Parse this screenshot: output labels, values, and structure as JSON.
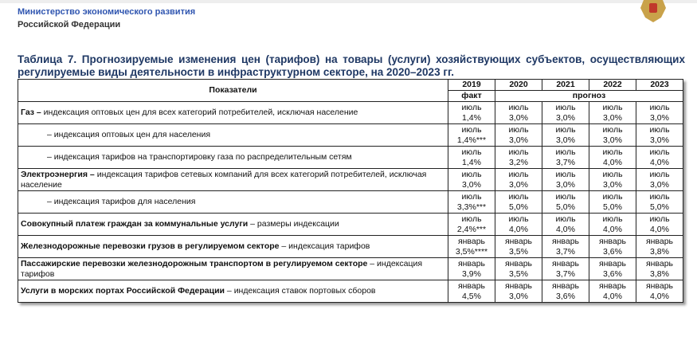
{
  "header": {
    "org_line1": "Министерство экономического развития",
    "org_line2": "Российской Федерации"
  },
  "title": "Таблица 7. Прогнозируемые изменения цен (тарифов) на товары (услуги) хозяйствующих субъектов, осуществляющих регулируемые виды деятельности в инфраструктурном секторе, на 2020–2023 гг.",
  "table": {
    "col_indicator": "Показатели",
    "years": [
      "2019",
      "2020",
      "2021",
      "2022",
      "2023"
    ],
    "fact": "факт",
    "forecast": "прогноз",
    "rows": [
      {
        "bold": "Газ –",
        "text": " индексация оптовых цен для всех категорий потребителей, исключая население",
        "indent": false,
        "month": "июль",
        "values": [
          "1,4%",
          "3,0%",
          "3,0%",
          "3,0%",
          "3,0%"
        ]
      },
      {
        "bold": "",
        "text": "– индексация оптовых цен для населения",
        "indent": true,
        "month": "июль",
        "values": [
          "1,4%***",
          "3,0%",
          "3,0%",
          "3,0%",
          "3,0%"
        ]
      },
      {
        "bold": "",
        "text": "– индексация тарифов на транспортировку газа по распределительным сетям",
        "indent": true,
        "month": "июль",
        "values": [
          "1,4%",
          "3,2%",
          "3,7%",
          "4,0%",
          "4,0%"
        ]
      },
      {
        "bold": "Электроэнергия –",
        "text": " индексация тарифов сетевых компаний для всех категорий потребителей, исключая население",
        "indent": false,
        "month": "июль",
        "values": [
          "3,0%",
          "3,0%",
          "3,0%",
          "3,0%",
          "3,0%"
        ]
      },
      {
        "bold": "",
        "text": "– индексация тарифов для населения",
        "indent": true,
        "month": "июль",
        "values": [
          "3,3%***",
          "5,0%",
          "5,0%",
          "5,0%",
          "5,0%"
        ]
      },
      {
        "bold": "Совокупный платеж граждан за коммунальные услуги",
        "text": " – размеры индексации",
        "indent": false,
        "month": "июль",
        "values": [
          "2,4%***",
          "4,0%",
          "4,0%",
          "4,0%",
          "4,0%"
        ]
      },
      {
        "bold": "Железнодорожные перевозки грузов в регулируемом секторе",
        "text": " – индексация тарифов",
        "indent": false,
        "month": "январь",
        "values": [
          "3,5%****",
          "3,5%",
          "3,7%",
          "3,6%",
          "3,8%"
        ]
      },
      {
        "bold": "Пассажирские перевозки железнодорожным транспортом в регулируемом секторе",
        "text": " – индексация тарифов",
        "indent": false,
        "month": "январь",
        "values": [
          "3,9%",
          "3,5%",
          "3,7%",
          "3,6%",
          "3,8%"
        ]
      },
      {
        "bold": "Услуги в морских портах Российской Федерации",
        "text": " – индексация ставок портовых сборов",
        "indent": false,
        "month": "январь",
        "values": [
          "4,5%",
          "3,0%",
          "3,6%",
          "4,0%",
          "4,0%"
        ]
      }
    ]
  }
}
